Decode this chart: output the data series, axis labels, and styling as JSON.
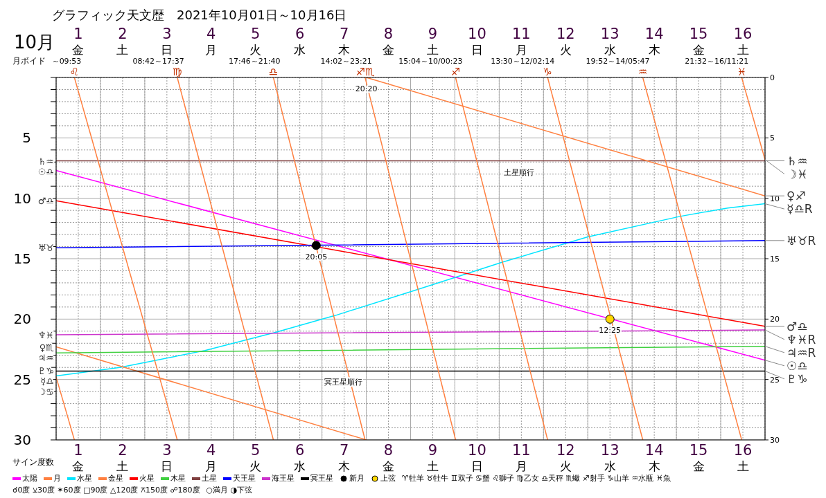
{
  "chart_data": {
    "type": "line",
    "title": "グラフィック天文歴　2021年10月01日～10月16日",
    "xlim": [
      0.5,
      16.5
    ],
    "xticks": [
      {
        "value": 0.5,
        "label": null
      },
      {
        "value": 1,
        "label": "1\n金"
      },
      {
        "value": 1.5,
        "label": null
      },
      {
        "value": 2,
        "label": "2\n土"
      },
      {
        "value": 2.5,
        "label": null
      },
      {
        "value": 3,
        "label": "3\n日"
      },
      {
        "value": 3.5,
        "label": null
      },
      {
        "value": 4,
        "label": "4\n月"
      },
      {
        "value": 4.5,
        "label": null
      },
      {
        "value": 5,
        "label": "5\n火"
      },
      {
        "value": 5.5,
        "label": null
      },
      {
        "value": 6,
        "label": "6\n水"
      },
      {
        "value": 6.5,
        "label": null
      },
      {
        "value": 7,
        "label": "7\n木"
      },
      {
        "value": 7.5,
        "label": null
      },
      {
        "value": 8,
        "label": "8\n金"
      },
      {
        "value": 8.5,
        "label": null
      },
      {
        "value": 9,
        "label": "9\n土"
      },
      {
        "value": 9.5,
        "label": null
      },
      {
        "value": 10,
        "label": "10\n日"
      },
      {
        "value": 10.5,
        "label": null
      },
      {
        "value": 11,
        "label": "11\n月"
      },
      {
        "value": 11.5,
        "label": null
      },
      {
        "value": 12,
        "label": "12\n火"
      },
      {
        "value": 12.5,
        "label": null
      },
      {
        "value": 13,
        "label": "13\n水"
      },
      {
        "value": 13.5,
        "label": null
      },
      {
        "value": 14,
        "label": "14\n木"
      },
      {
        "value": 14.5,
        "label": null
      },
      {
        "value": 15,
        "label": "15\n金"
      },
      {
        "value": 15.5,
        "label": null
      },
      {
        "value": 16,
        "label": "16\n土"
      },
      {
        "value": 16.5,
        "label": null
      }
    ],
    "x2lim": [
      0.5,
      16.5
    ],
    "x2ticks": [
      {
        "value": 1,
        "label": "1\n金"
      },
      {
        "value": 2,
        "label": "2\n土"
      },
      {
        "value": 3,
        "label": "3\n日"
      },
      {
        "value": 4,
        "label": "4\n月"
      },
      {
        "value": 5,
        "label": "5\n火"
      },
      {
        "value": 6,
        "label": "6\n水"
      },
      {
        "value": 7,
        "label": "7\n木"
      },
      {
        "value": 8,
        "label": "8\n金"
      },
      {
        "value": 9,
        "label": "9\n土"
      },
      {
        "value": 10,
        "label": "10\n日"
      },
      {
        "value": 11,
        "label": "11\n月"
      },
      {
        "value": 12,
        "label": "12\n火"
      },
      {
        "value": 13,
        "label": "13\n水"
      },
      {
        "value": 14,
        "label": "14\n木"
      },
      {
        "value": 15,
        "label": "15\n金"
      },
      {
        "value": 16,
        "label": "16\n土"
      }
    ],
    "ylim": [
      30,
      0
    ],
    "yticks": [
      {
        "value": 0,
        "label": null
      },
      {
        "value": 1,
        "label": null
      },
      {
        "value": 2,
        "label": null
      },
      {
        "value": 3,
        "label": null
      },
      {
        "value": 4,
        "label": null
      },
      5,
      {
        "value": 6,
        "label": null
      },
      {
        "value": 7,
        "label": null
      },
      {
        "value": 8,
        "label": null
      },
      {
        "value": 9,
        "label": null
      },
      10,
      {
        "value": 11,
        "label": null
      },
      {
        "value": 12,
        "label": null
      },
      {
        "value": 13,
        "label": null
      },
      {
        "value": 14,
        "label": null
      },
      15,
      {
        "value": 16,
        "label": null
      },
      {
        "value": 17,
        "label": null
      },
      {
        "value": 18,
        "label": null
      },
      {
        "value": 19,
        "label": null
      },
      20,
      {
        "value": 21,
        "label": null
      },
      {
        "value": 22,
        "label": null
      },
      {
        "value": 23,
        "label": null
      },
      {
        "value": 24,
        "label": null
      },
      25,
      {
        "value": 26,
        "label": null
      },
      {
        "value": 27,
        "label": null
      },
      {
        "value": 28,
        "label": null
      },
      {
        "value": 29,
        "label": null
      },
      30
    ],
    "y2lim": [
      30,
      0
    ],
    "y2ticks": [
      0,
      5,
      10,
      15,
      20,
      25,
      30
    ],
    "grid": true,
    "legend": "bottom",
    "line_style": "solid",
    "series": [
      {
        "name": "太陽",
        "color": "#ff00ff",
        "x": [
          0.5,
          16.5
        ],
        "values": [
          7.7,
          23.4
        ]
      },
      {
        "name": "月",
        "color": "#ff8040",
        "x": [
          0.5,
          0.912
        ],
        "values": [
          24.8,
          30
        ]
      },
      {
        "name": "水星",
        "color": "#00e5ff",
        "x": [
          0.5,
          1.94,
          3.86,
          5.45,
          6.8,
          8.66,
          9.8,
          10.56,
          12.5,
          14.58,
          15.66,
          16.5
        ],
        "values": [
          24.7,
          24.0,
          22.6,
          21.1,
          19.7,
          17.55,
          16.2,
          15.3,
          13.2,
          11.5,
          10.8,
          10.45
        ]
      },
      {
        "name": "金星",
        "color": "#ff8040",
        "x": [
          0.5,
          7.5
        ],
        "values": [
          22.3,
          30
        ]
      },
      {
        "name": "火星",
        "color": "#ff0000",
        "x": [
          0.5,
          16.5
        ],
        "values": [
          10.2,
          20.6
        ]
      },
      {
        "name": "木星",
        "color": "#40d040",
        "x": [
          0.5,
          16.5
        ],
        "values": [
          22.8,
          22.25
        ]
      },
      {
        "name": "土星",
        "color": "#804040",
        "x": [
          0.5,
          16.5
        ],
        "values": [
          6.9,
          6.9
        ]
      },
      {
        "name": "天王星",
        "color": "#0000ff",
        "x": [
          0.5,
          16.5
        ],
        "values": [
          14.1,
          13.5
        ]
      },
      {
        "name": "海王星",
        "color": "#cc33cc",
        "x": [
          0.5,
          16.5
        ],
        "values": [
          21.3,
          20.9
        ]
      },
      {
        "name": "冥王星",
        "color": "#000000",
        "x": [
          0.5,
          16.5
        ],
        "values": [
          24.3,
          24.3
        ]
      },
      {
        "name": "新月",
        "type": "scatter",
        "color": "#000000",
        "x": [
          6.37
        ],
        "values": [
          13.9
        ]
      },
      {
        "name": "上弦",
        "type": "scatter",
        "color": "#ffd700",
        "x": [
          13.0
        ],
        "values": [
          20.0
        ]
      },
      {
        "color": "#ff8040",
        "x": [
          0.912,
          3.234
        ],
        "values": [
          0,
          30
        ]
      },
      {
        "color": "#ff8040",
        "x": [
          3.234,
          5.403
        ],
        "values": [
          0,
          30
        ]
      },
      {
        "color": "#ff8040",
        "x": [
          5.403,
          7.473
        ],
        "values": [
          0,
          30
        ]
      },
      {
        "color": "#ff8040",
        "x": [
          7.473,
          9.516
        ],
        "values": [
          0,
          30
        ]
      },
      {
        "color": "#ff8040",
        "x": [
          9.516,
          11.593
        ],
        "values": [
          0,
          30
        ]
      },
      {
        "color": "#ff8040",
        "x": [
          11.593,
          13.741
        ],
        "values": [
          0,
          30
        ]
      },
      {
        "color": "#ff8040",
        "x": [
          13.741,
          15.973
        ],
        "values": [
          0,
          30
        ]
      },
      {
        "color": "#ff8040",
        "x": [
          15.973,
          16.5
        ],
        "values": [
          0,
          6.8
        ]
      },
      {
        "color": "#ff8040",
        "x": [
          7.5,
          16.5
        ],
        "values": [
          0,
          9.8
        ]
      }
    ],
    "annotations": [
      "10月",
      "月ボイド",
      "サイン度数",
      "♈牡羊 ♉牡牛 ♊双子 ♋蟹 ♌獅子 ♍乙女 ♎天秤 ♏蠍 ♐射手 ♑山羊 ♒水瓶 ♓魚",
      "☌0度 ⚺30度 ✶60度 □90度 △120度 ⚻150度 ☍180度",
      "○満月 ◑下弦",
      {
        "text": "～09:53\n♌",
        "x": 0.912,
        "y": 0
      },
      {
        "text": "08:42～17:37\n♍",
        "x": 3.234,
        "y": 0
      },
      {
        "text": "17:46～21:40\n♎",
        "x": 5.403,
        "y": 0
      },
      {
        "text": "14:02～23:21\n♐♏",
        "x": 7.473,
        "y": 0
      },
      {
        "text": "15:04～10/00:23\n♐",
        "x": 9.516,
        "y": 0
      },
      {
        "text": "13:30～12/02:14\n♑",
        "x": 11.593,
        "y": 0
      },
      {
        "text": "19:52～14/05:47\n♒",
        "x": 13.741,
        "y": 0
      },
      {
        "text": "21:32～16/11:21\n♓",
        "x": 15.973,
        "y": 0
      },
      {
        "text": "20:20",
        "x": 7.5,
        "y": 0
      },
      {
        "text": "20:05",
        "x": 6.37,
        "y": 13.9
      },
      {
        "text": "12:25",
        "x": 13.0,
        "y": 20.0
      },
      {
        "text": "土星順行",
        "x": 10.95,
        "y": 6.9
      },
      {
        "text": "冥王星順行",
        "x": 6.98,
        "y": 24.3
      },
      {
        "text": "♄♒",
        "x": 0.5,
        "y": 6.9
      },
      {
        "text": "☉♎",
        "x": 0.5,
        "y": 7.7
      },
      {
        "text": "♂♎",
        "x": 0.5,
        "y": 10.2
      },
      {
        "text": "♅♉",
        "x": 0.5,
        "y": 14.1
      },
      {
        "text": "♆♓",
        "x": 0.5,
        "y": 21.3
      },
      {
        "text": "♀♏",
        "x": 0.5,
        "y": 22.3
      },
      {
        "text": "♃♒",
        "x": 0.5,
        "y": 22.8
      },
      {
        "text": "♇♑",
        "x": 0.5,
        "y": 24.3
      },
      {
        "text": "☿♎",
        "x": 0.5,
        "y": 24.7
      },
      {
        "text": "☽♋",
        "x": 0.5,
        "y": 24.8
      },
      {
        "text": "♄♒",
        "x": 16.5,
        "y": 6.9
      },
      {
        "text": "☽♓",
        "x": 16.5,
        "y": 6.8
      },
      {
        "text": "♀♐",
        "x": 16.5,
        "y": 9.8
      },
      {
        "text": "☿♎R",
        "x": 16.5,
        "y": 10.45
      },
      {
        "text": "♅♉R",
        "x": 16.5,
        "y": 13.5
      },
      {
        "text": "♂♎",
        "x": 16.5,
        "y": 20.6
      },
      {
        "text": "♆♓R",
        "x": 16.5,
        "y": 20.9
      },
      {
        "text": "♃♒R",
        "x": 16.5,
        "y": 22.25
      },
      {
        "text": "☉♎",
        "x": 16.5,
        "y": 23.4
      },
      {
        "text": "♇♑",
        "x": 16.5,
        "y": 24.3
      }
    ]
  }
}
